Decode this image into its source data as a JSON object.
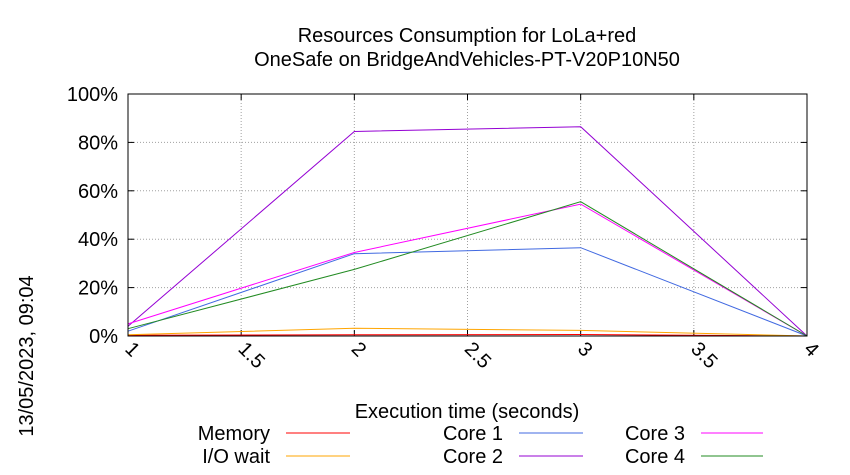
{
  "chart_data": {
    "type": "line",
    "title": "Resources Consumption for LoLa+red",
    "subtitle": "OneSafe on BridgeAndVehicles-PT-V20P10N50",
    "xlabel": "Execution time (seconds)",
    "ylabel": "",
    "side_note": "13/05/2023, 09:04",
    "xlim": [
      1,
      4
    ],
    "ylim": [
      0,
      100
    ],
    "x_ticks": [
      1,
      1.5,
      2,
      2.5,
      3,
      3.5,
      4
    ],
    "y_ticks": [
      0,
      20,
      40,
      60,
      80,
      100
    ],
    "y_tick_labels": [
      "0%",
      "20%",
      "40%",
      "60%",
      "80%",
      "100%"
    ],
    "grid": true,
    "legend_position": "bottom",
    "series": [
      {
        "name": "Memory",
        "color": "#ff0000",
        "x": [
          1,
          2,
          3,
          4
        ],
        "y": [
          0.3,
          0.5,
          0.6,
          0
        ]
      },
      {
        "name": "I/O wait",
        "color": "#ffa500",
        "x": [
          1,
          2,
          3,
          4
        ],
        "y": [
          0.5,
          3.2,
          2.3,
          0
        ]
      },
      {
        "name": "Core 1",
        "color": "#4169e1",
        "x": [
          1,
          2,
          3,
          4
        ],
        "y": [
          2,
          34,
          36.5,
          0
        ]
      },
      {
        "name": "Core 2",
        "color": "#9400d3",
        "x": [
          1,
          2,
          3,
          4
        ],
        "y": [
          4,
          84.5,
          86.5,
          0
        ]
      },
      {
        "name": "Core 3",
        "color": "#ff00ff",
        "x": [
          1,
          2,
          3,
          4
        ],
        "y": [
          5,
          34.5,
          54.5,
          0
        ]
      },
      {
        "name": "Core 4",
        "color": "#228b22",
        "x": [
          1,
          2,
          3,
          4
        ],
        "y": [
          3,
          27.5,
          55.5,
          0
        ]
      }
    ]
  }
}
